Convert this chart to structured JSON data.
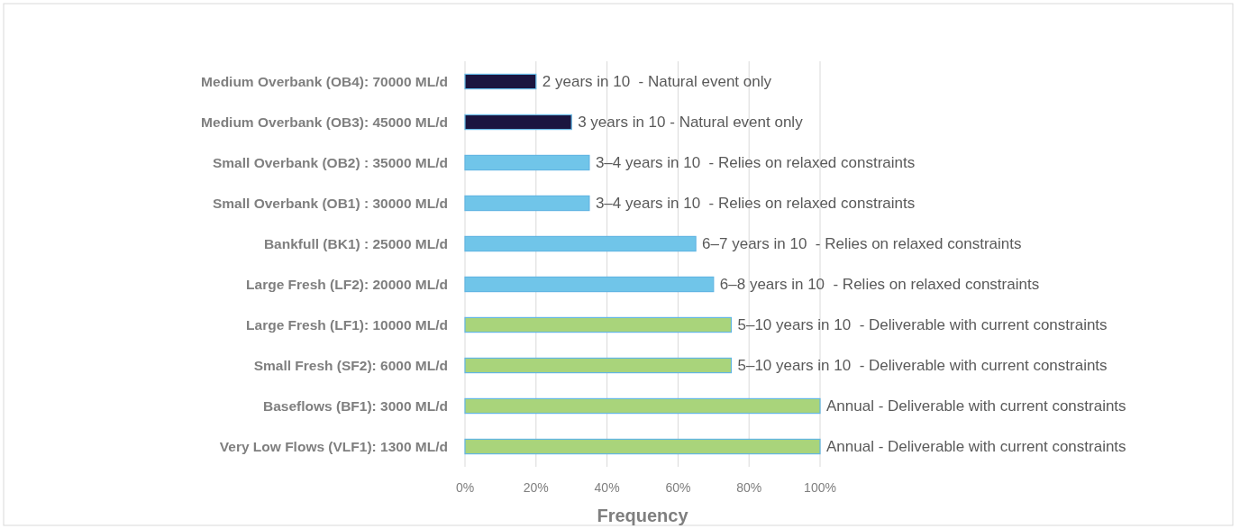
{
  "chart_data": {
    "type": "bar",
    "orientation": "horizontal",
    "xlabel": "Frequency",
    "categories": [
      "Medium Overbank (OB4): 70000 ML/d",
      "Medium Overbank (OB3): 45000 ML/d",
      "Small Overbank (OB2) : 35000 ML/d",
      "Small Overbank (OB1) : 30000 ML/d",
      "Bankfull (BK1) : 25000 ML/d",
      "Large Fresh (LF2): 20000 ML/d",
      "Large Fresh (LF1): 10000 ML/d",
      "Small Fresh (SF2): 6000 ML/d",
      "Baseflows (BF1): 3000 ML/d",
      "Very Low Flows (VLF1): 1300 ML/d"
    ],
    "values": [
      20,
      30,
      35,
      35,
      65,
      70,
      75,
      75,
      100,
      100
    ],
    "colors": [
      "#1b1540",
      "#1b1540",
      "#70c5e9",
      "#70c5e9",
      "#70c5e9",
      "#70c5e9",
      "#a9d47b",
      "#a9d47b",
      "#a9d47b",
      "#a9d47b"
    ],
    "annotations": [
      {
        "text": "2 years in 10  - Natural event only",
        "x": 20,
        "y": "Medium Overbank (OB4): 70000 ML/d"
      },
      {
        "text": "3 years in 10 - Natural event only",
        "x": 30,
        "y": "Medium Overbank (OB3): 45000 ML/d"
      },
      {
        "text": "3–4 years in 10  - Relies on relaxed constraints",
        "x": 35,
        "y": "Small Overbank (OB2) : 35000 ML/d"
      },
      {
        "text": "3–4 years in 10  - Relies on relaxed constraints",
        "x": 35,
        "y": "Small Overbank (OB1) : 30000 ML/d"
      },
      {
        "text": "6–7 years in 10  - Relies on relaxed constraints",
        "x": 65,
        "y": "Bankfull (BK1) : 25000 ML/d"
      },
      {
        "text": "6–8 years in 10  - Relies on relaxed constraints",
        "x": 70,
        "y": "Large Fresh (LF2): 20000 ML/d"
      },
      {
        "text": "5–10 years in 10  - Deliverable with current constraints",
        "x": 75,
        "y": "Large Fresh (LF1): 10000 ML/d"
      },
      {
        "text": "5–10 years in 10  - Deliverable with current constraints",
        "x": 75,
        "y": "Small Fresh (SF2): 6000 ML/d"
      },
      {
        "text": "Annual - Deliverable with current constraints",
        "x": 100,
        "y": "Baseflows (BF1): 3000 ML/d"
      },
      {
        "text": "Annual - Deliverable with current constraints",
        "x": 100,
        "y": "Very Low Flows (VLF1): 1300 ML/d"
      }
    ],
    "xlim": [
      0,
      100
    ],
    "xticks": [
      {
        "value": 0,
        "label": "0%"
      },
      {
        "value": 20,
        "label": "20%"
      },
      {
        "value": 40,
        "label": "40%"
      },
      {
        "value": 60,
        "label": "60%"
      },
      {
        "value": 80,
        "label": "80%"
      },
      {
        "value": 100,
        "label": "100%"
      }
    ],
    "grid": "x"
  }
}
